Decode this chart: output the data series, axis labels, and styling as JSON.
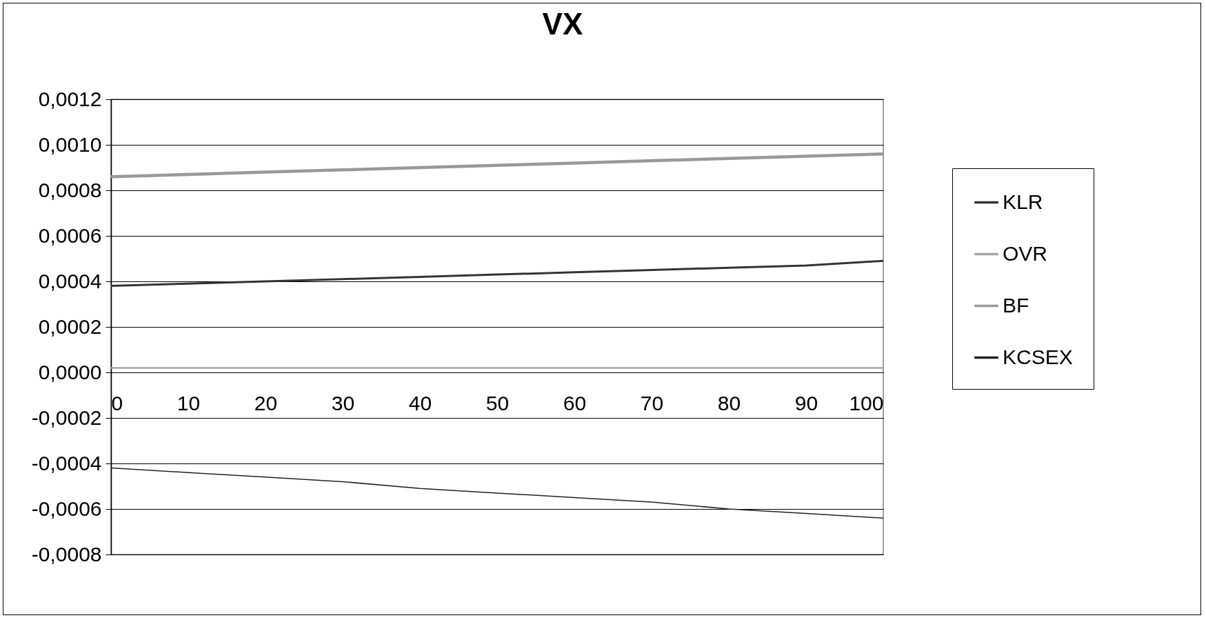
{
  "chart_data": {
    "type": "line",
    "title": "VX",
    "x": [
      0,
      10,
      20,
      30,
      40,
      50,
      60,
      70,
      80,
      90,
      100
    ],
    "xlim": [
      0,
      100
    ],
    "xticks": [
      0,
      10,
      20,
      30,
      40,
      50,
      60,
      70,
      80,
      90,
      100
    ],
    "ylim": [
      -0.0008,
      0.0012
    ],
    "yticks": [
      {
        "value": -0.0008,
        "label": "-0,0008"
      },
      {
        "value": -0.0006,
        "label": "-0,0006"
      },
      {
        "value": -0.0004,
        "label": "-0,0004"
      },
      {
        "value": -0.0002,
        "label": "-0,0002"
      },
      {
        "value": 0,
        "label": "0,0000"
      },
      {
        "value": 0.0002,
        "label": "0,0002"
      },
      {
        "value": 0.0004,
        "label": "0,0004"
      },
      {
        "value": 0.0006,
        "label": "0,0006"
      },
      {
        "value": 0.0008,
        "label": "0,0008"
      },
      {
        "value": 0.001,
        "label": "0,0010"
      },
      {
        "value": 0.0012,
        "label": "0,0012"
      }
    ],
    "grid": "y",
    "legend": "right",
    "marker": "none",
    "line_style": "solid",
    "series": [
      {
        "name": "KLR",
        "color": "#333333",
        "values": [
          0.00038,
          0.00039,
          0.0004,
          0.00041,
          0.00042,
          0.00043,
          0.00044,
          0.00045,
          0.00046,
          0.00047,
          0.00049
        ]
      },
      {
        "name": "OVR",
        "color": "#a6a6a6",
        "values": [
          2e-05,
          2e-05,
          2e-05,
          2e-05,
          2e-05,
          2e-05,
          2e-05,
          2e-05,
          2e-05,
          2e-05,
          2e-05
        ]
      },
      {
        "name": "BF",
        "color": "#999999",
        "values": [
          0.00086,
          0.00087,
          0.00088,
          0.00089,
          0.0009,
          0.00091,
          0.00092,
          0.00093,
          0.00094,
          0.00095,
          0.00096
        ]
      },
      {
        "name": "KCSEX",
        "color": "#222222",
        "values": [
          -0.00042,
          -0.00044,
          -0.00046,
          -0.00048,
          -0.00051,
          -0.00053,
          -0.00055,
          -0.00057,
          -0.0006,
          -0.00062,
          -0.00064
        ]
      }
    ]
  }
}
